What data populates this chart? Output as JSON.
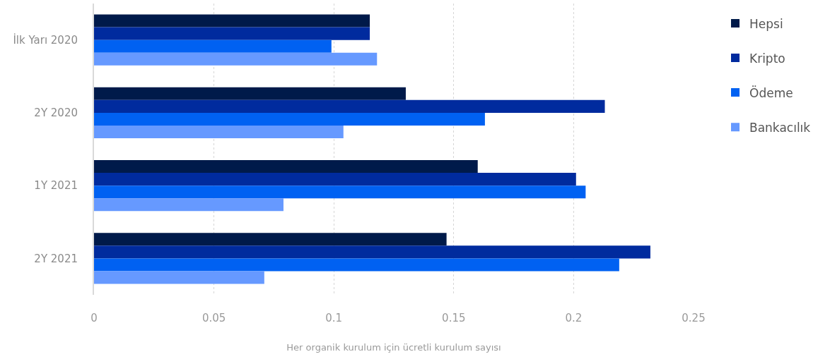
{
  "chart_data": {
    "type": "bar",
    "orientation": "horizontal",
    "xlabel": "Her organik kurulum için ücretli kurulum sayısı",
    "categories": [
      "İlk Yarı 2020",
      "2Y 2020",
      "1Y 2021",
      "2Y 2021"
    ],
    "series": [
      {
        "name": "Hepsi",
        "color": "#001a4a",
        "values": [
          0.115,
          0.13,
          0.16,
          0.147
        ]
      },
      {
        "name": "Kripto",
        "color": "#002b9e",
        "values": [
          0.115,
          0.213,
          0.201,
          0.232
        ]
      },
      {
        "name": "Ödeme",
        "color": "#0061f2",
        "values": [
          0.099,
          0.163,
          0.205,
          0.219
        ]
      },
      {
        "name": "Bankacılık",
        "color": "#6699ff",
        "values": [
          0.118,
          0.104,
          0.079,
          0.071
        ]
      }
    ],
    "xlim": [
      0,
      0.25
    ],
    "xticks": [
      0,
      0.05,
      0.1,
      0.15,
      0.2,
      0.25
    ],
    "grid": "x",
    "legend": "top right"
  }
}
